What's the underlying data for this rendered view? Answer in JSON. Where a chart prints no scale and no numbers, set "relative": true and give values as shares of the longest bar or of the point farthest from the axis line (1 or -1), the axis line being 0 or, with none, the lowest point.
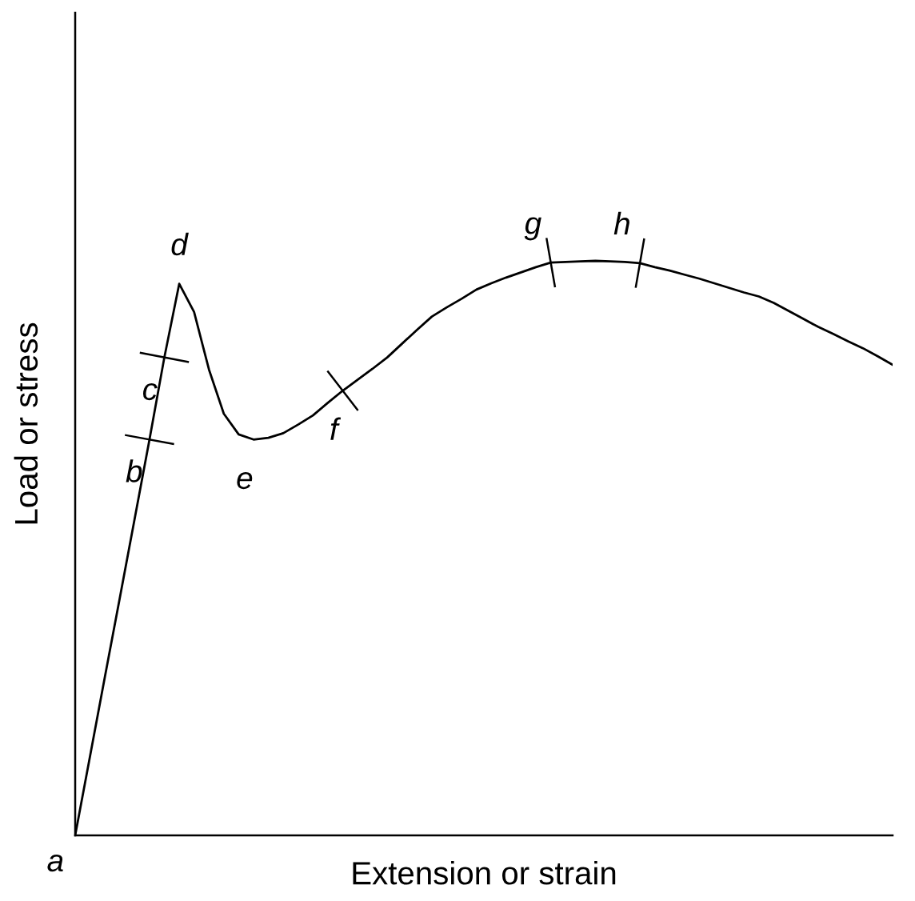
{
  "chart_data": {
    "type": "line",
    "relative": true,
    "xlabel": "Extension or strain",
    "ylabel": "Load or stress",
    "categories": [
      null,
      null,
      null,
      null,
      null,
      null,
      null,
      null,
      null,
      null,
      null,
      null,
      null,
      null,
      null,
      null,
      null,
      null,
      null,
      null,
      null,
      null,
      null,
      null,
      null,
      null,
      null,
      null,
      null,
      null,
      null,
      null,
      null,
      null,
      null,
      null,
      null,
      null,
      null,
      null,
      null,
      null,
      null,
      null,
      null,
      null,
      null,
      null,
      null,
      null,
      null,
      null,
      null,
      null,
      null,
      null
    ],
    "series": [
      {
        "color": "#000000",
        "values": [
          0,
          0.138,
          0.276,
          0.413,
          0.551,
          0.689,
          0.832,
          0.96,
          0.911,
          0.811,
          0.734,
          0.698,
          0.689,
          0.692,
          0.7,
          0.715,
          0.731,
          0.753,
          0.774,
          0.793,
          0.812,
          0.832,
          0.856,
          0.88,
          0.903,
          0.919,
          0.934,
          0.95,
          0.961,
          0.971,
          0.98,
          0.989,
          0.997,
          0.998,
          0.999,
          1.0,
          0.999,
          0.998,
          0.996,
          0.989,
          0.983,
          0.976,
          0.969,
          0.961,
          0.953,
          0.945,
          0.938,
          0.927,
          0.913,
          0.899,
          0.885,
          0.873,
          0.86,
          0.848,
          0.834,
          0.819
        ]
      }
    ],
    "annotations": [
      "a",
      "b",
      "c",
      {
        "text": "d",
        "y": 0.96
      },
      {
        "text": "e",
        "y": 0.689
      },
      {
        "text": "f",
        "y": 0.774
      },
      {
        "text": "g",
        "y": 0.997
      },
      {
        "text": "h",
        "y": 0.996
      }
    ]
  }
}
